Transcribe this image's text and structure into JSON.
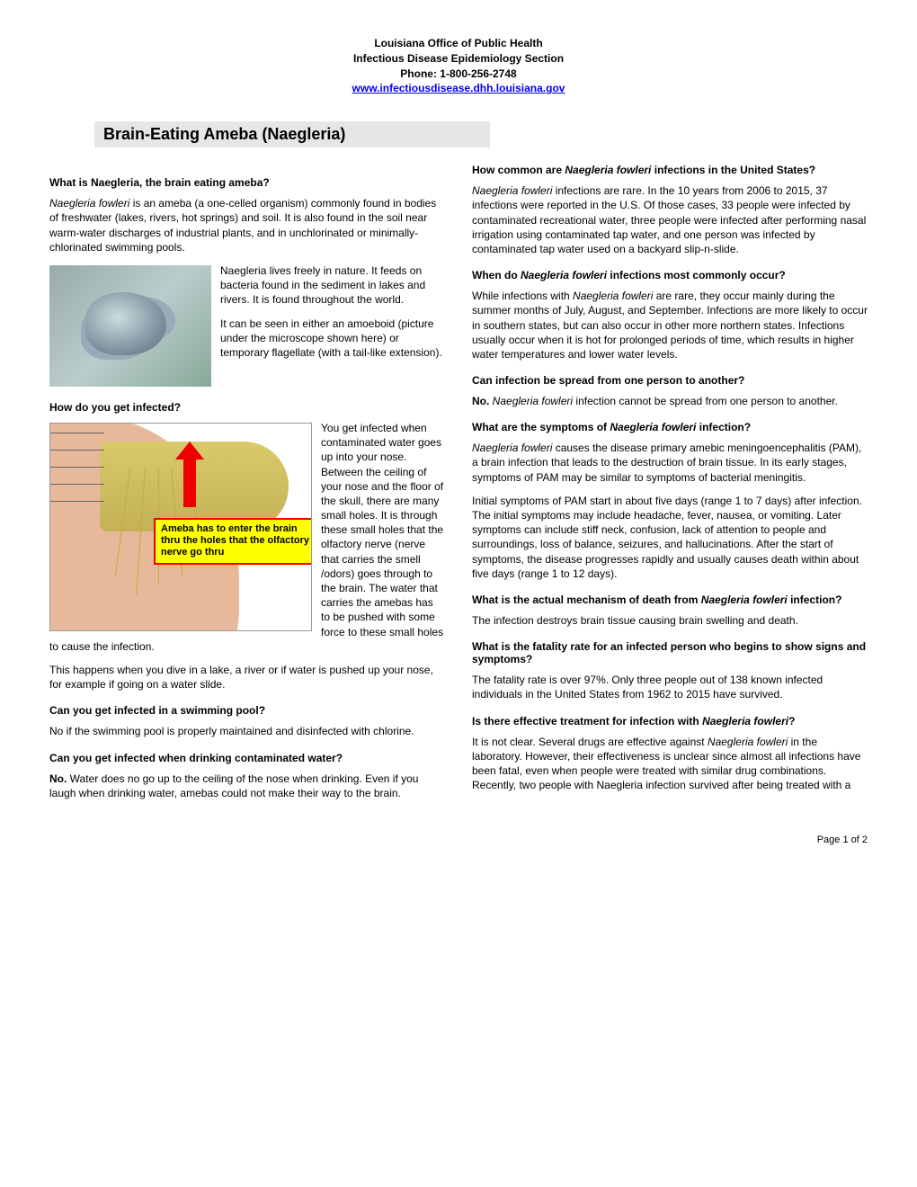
{
  "header": {
    "line1": "Louisiana Office of Public Health",
    "line2": "Infectious Disease Epidemiology Section",
    "line3": "Phone: 1-800-256-2748",
    "link_text": "www.infectiousdisease.dhh.louisiana.gov"
  },
  "title": "Brain-Eating Ameba (Naegleria)",
  "diagram_callout": "Ameba has to enter the brain thru the holes that the olfactory nerve go thru",
  "sections": {
    "q1_heading": "What is Naegleria, the brain eating ameba?",
    "q1_p1a": "Naegleria fowleri",
    "q1_p1b": " is an ameba (a one-celled organism) commonly found in bodies of freshwater (lakes, rivers, hot springs) and soil. It is also found in the soil near warm-water discharges of industrial plants, and in unchlorinated or minimally-chlorinated swimming pools.",
    "q1_p2": "Naegleria lives freely in nature. It feeds on bacteria found in the sediment in lakes and rivers. It is found throughout the world.",
    "q1_p3": "It can be seen in either an amoeboid (picture under the microscope shown here) or temporary flagellate (with a tail-like extension).",
    "q2_heading": "How do you get infected?",
    "q2_p1": "You get infected when contaminated water goes up into your nose. Between the ceiling of your nose and the floor of the skull, there are many small holes. It is through these small holes that the olfactory nerve (nerve that carries the smell /odors) goes through to the brain. The water that carries the amebas has to be pushed with some force to these small holes to cause the infection.",
    "q2_p2": "This happens when you dive in a lake, a river or if water is pushed up your nose, for example if going on a water slide.",
    "q3_heading": "Can you get infected in a swimming pool?",
    "q3_p1": "No if the swimming pool is properly maintained and disinfected with chlorine.",
    "q4_heading": "Can you get infected when drinking contaminated water?",
    "q4_p1a": "No.",
    "q4_p1b": " Water does no go up to the ceiling of the nose when drinking. Even if you laugh when drinking water, amebas could not make their way to the brain.",
    "q5_heading_a": "How common are ",
    "q5_heading_b": "Naegleria fowleri",
    "q5_heading_c": " infections in the United States?",
    "q5_p1a": "Naegleria fowleri",
    "q5_p1b": " infections are rare.  In the 10 years from 2006 to 2015, 37 infections were reported in the U.S. Of those cases, 33 people were infected by contaminated recreational water, three people were infected after performing nasal irrigation using contaminated tap water, and one person was infected by contaminated tap water used on a backyard slip-n-slide.",
    "q6_heading_a": "When do ",
    "q6_heading_b": "Naegleria fowleri",
    "q6_heading_c": " infections most commonly occur?",
    "q6_p1a": "While infections with ",
    "q6_p1b": "Naegleria fowleri",
    "q6_p1c": " are rare, they occur mainly during the summer months of July, August, and September. Infections are more likely to occur in southern states, but can also occur in other more northern states. Infections usually occur when it is hot for prolonged periods of time, which results in higher water temperatures and lower water levels.",
    "q7_heading": "Can infection be spread from one person to another?",
    "q7_p1a": "No.",
    "q7_p1b": " Naegleria fowleri",
    "q7_p1c": " infection cannot be spread from one person to another.",
    "q8_heading_a": "What are the symptoms of ",
    "q8_heading_b": "Naegleria fowleri",
    "q8_heading_c": " infection?",
    "q8_p1a": "Naegleria fowleri",
    "q8_p1b": " causes the disease primary amebic meningoencephalitis (PAM), a brain infection that leads to the destruction of brain tissue. In its early stages, symptoms of PAM may be similar to symptoms of bacterial meningitis.",
    "q8_p2": "Initial symptoms of PAM start in about five days (range 1 to 7 days) after infection. The initial symptoms may include headache, fever, nausea, or vomiting. Later symptoms can include stiff neck, confusion, lack of attention to people and surroundings, loss of balance, seizures, and hallucinations. After the start of symptoms, the disease progresses rapidly and usually causes death within about five days (range 1 to 12 days).",
    "q9_heading_a": "What is the actual mechanism of death from ",
    "q9_heading_b": "Naegleria fowleri",
    "q9_heading_c": " infection?",
    "q9_p1": "The infection destroys brain tissue causing brain swelling and death.",
    "q10_heading": "What is the fatality rate for an infected person who begins to show signs and symptoms?",
    "q10_p1": "The fatality rate is over 97%. Only three people out of 138 known infected individuals in the United States from 1962 to 2015 have survived.",
    "q11_heading_a": "Is there effective treatment for infection with ",
    "q11_heading_b": "Naegleria fowleri",
    "q11_heading_c": "?",
    "q11_p1a": "It is not clear. Several drugs are effective against ",
    "q11_p1b": "Naegleria fowleri",
    "q11_p1c": " in the laboratory. However, their effectiveness is unclear since almost all infections have been fatal, even when people were treated with similar drug combinations. Recently, two people with Naegleria infection survived after being treated with a"
  },
  "page_number": "Page 1 of 2"
}
